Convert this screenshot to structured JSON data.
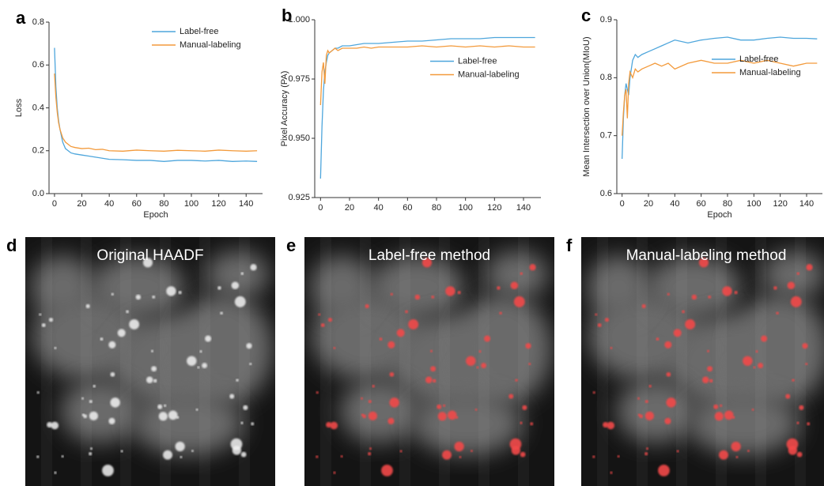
{
  "chart_data": [
    {
      "type": "line",
      "label": "a",
      "xlabel": "Epoch",
      "ylabel": "Loss",
      "legend": "upper right",
      "x": [
        0,
        1,
        2,
        3,
        4,
        5,
        6,
        8,
        10,
        12,
        15,
        20,
        25,
        30,
        35,
        40,
        50,
        60,
        70,
        80,
        90,
        100,
        110,
        120,
        130,
        140,
        148
      ],
      "xlim": [
        -4,
        152
      ],
      "xticks": [
        0,
        20,
        40,
        60,
        80,
        100,
        120,
        140
      ],
      "ylim": [
        0,
        0.8
      ],
      "yticks": [
        {
          "value": 0,
          "label": "0.0"
        },
        0.2,
        0.4,
        0.6,
        0.8
      ],
      "series": [
        {
          "name": "Label-free",
          "color": "#4ea6dc",
          "values": [
            0.68,
            0.5,
            0.4,
            0.34,
            0.3,
            0.27,
            0.24,
            0.21,
            0.2,
            0.19,
            0.185,
            0.18,
            0.175,
            0.17,
            0.165,
            0.16,
            0.158,
            0.155,
            0.155,
            0.15,
            0.155,
            0.155,
            0.152,
            0.155,
            0.15,
            0.152,
            0.15
          ]
        },
        {
          "name": "Manual-labeling",
          "color": "#f39a3b",
          "values": [
            0.56,
            0.45,
            0.38,
            0.33,
            0.3,
            0.28,
            0.26,
            0.24,
            0.23,
            0.22,
            0.215,
            0.21,
            0.212,
            0.205,
            0.207,
            0.2,
            0.198,
            0.203,
            0.2,
            0.198,
            0.202,
            0.2,
            0.198,
            0.203,
            0.2,
            0.198,
            0.2
          ]
        }
      ]
    },
    {
      "type": "line",
      "label": "b",
      "ylabel": "Pixel Accuracy (PA)",
      "legend": "center right",
      "x": [
        0,
        1,
        2,
        3,
        4,
        5,
        6,
        8,
        10,
        12,
        15,
        20,
        25,
        30,
        35,
        40,
        50,
        60,
        70,
        80,
        90,
        100,
        110,
        120,
        130,
        140,
        148
      ],
      "xlim": [
        -4,
        152
      ],
      "xticks": [
        0,
        20,
        40,
        60,
        80,
        100,
        120,
        140
      ],
      "ylim": [
        0.925,
        1.0
      ],
      "yticks": [
        0.925,
        {
          "value": 0.95,
          "label": "0.950"
        },
        0.975,
        {
          "value": 1.0,
          "label": "1.000"
        }
      ],
      "series": [
        {
          "name": "Label-free",
          "color": "#4ea6dc",
          "values": [
            0.933,
            0.955,
            0.97,
            0.978,
            0.982,
            0.985,
            0.986,
            0.987,
            0.988,
            0.988,
            0.989,
            0.989,
            0.9895,
            0.99,
            0.99,
            0.99,
            0.9905,
            0.991,
            0.991,
            0.9915,
            0.992,
            0.992,
            0.992,
            0.9925,
            0.9925,
            0.9925,
            0.9925
          ]
        },
        {
          "name": "Manual-labeling",
          "color": "#f39a3b",
          "values": [
            0.964,
            0.978,
            0.982,
            0.973,
            0.985,
            0.987,
            0.986,
            0.987,
            0.988,
            0.987,
            0.988,
            0.988,
            0.988,
            0.9885,
            0.988,
            0.9885,
            0.9885,
            0.9885,
            0.989,
            0.9885,
            0.989,
            0.9885,
            0.989,
            0.9885,
            0.989,
            0.9885,
            0.9885
          ]
        }
      ]
    },
    {
      "type": "line",
      "label": "c",
      "xlabel": "Epoch",
      "ylabel": "Mean Intersection over Union(MIoU)",
      "legend": "center right",
      "x": [
        0,
        1,
        2,
        3,
        4,
        5,
        6,
        8,
        10,
        12,
        15,
        20,
        25,
        30,
        35,
        40,
        50,
        60,
        70,
        80,
        90,
        100,
        110,
        120,
        130,
        140,
        148
      ],
      "xlim": [
        -4,
        152
      ],
      "xticks": [
        0,
        20,
        40,
        60,
        80,
        100,
        120,
        140
      ],
      "ylim": [
        0.6,
        0.9
      ],
      "yticks": [
        0.6,
        0.7,
        0.8,
        0.9
      ],
      "series": [
        {
          "name": "Label-free",
          "color": "#4ea6dc",
          "values": [
            0.66,
            0.73,
            0.77,
            0.79,
            0.78,
            0.77,
            0.8,
            0.83,
            0.84,
            0.835,
            0.84,
            0.845,
            0.85,
            0.855,
            0.86,
            0.865,
            0.86,
            0.865,
            0.868,
            0.87,
            0.865,
            0.865,
            0.868,
            0.87,
            0.868,
            0.868,
            0.867
          ]
        },
        {
          "name": "Manual-labeling",
          "color": "#f39a3b",
          "values": [
            0.7,
            0.74,
            0.77,
            0.78,
            0.73,
            0.79,
            0.81,
            0.8,
            0.815,
            0.81,
            0.815,
            0.82,
            0.825,
            0.82,
            0.825,
            0.815,
            0.825,
            0.83,
            0.825,
            0.825,
            0.83,
            0.825,
            0.83,
            0.825,
            0.82,
            0.825,
            0.825
          ]
        }
      ]
    }
  ],
  "images": [
    {
      "label": "d",
      "title": "Original HAADF"
    },
    {
      "label": "e",
      "title": "Label-free method"
    },
    {
      "label": "f",
      "title": "Manual-labeling method"
    }
  ]
}
